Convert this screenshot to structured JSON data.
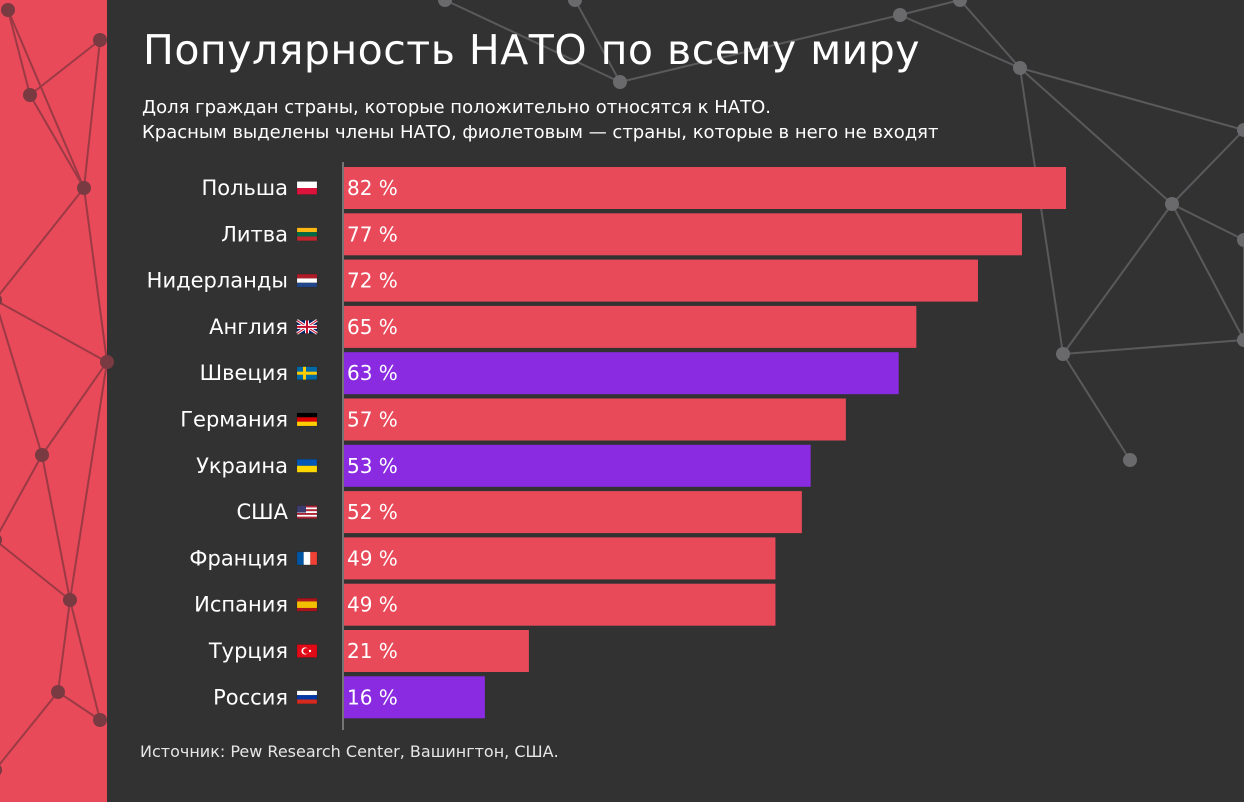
{
  "header": {
    "title": "Популярность НАТО по всему миру",
    "subtitle_line1": "Доля граждан страны, которые положительно относятся к НАТО.",
    "subtitle_line2": "Красным выделены члены НАТО, фиолетовым — страны, которые в него не входят"
  },
  "footer": {
    "source": "Источник: Pew Research Center, Вашингтон, США."
  },
  "colors": {
    "background": "#333233",
    "left_band": "#e84a5a",
    "nato_member": "#e84a5a",
    "non_member": "#8a2be2",
    "network_lines": "#5a595b"
  },
  "chart_data": {
    "type": "bar",
    "orientation": "horizontal",
    "unit": "%",
    "categories": [
      "Польша",
      "Литва",
      "Нидерланды",
      "Англия",
      "Швеция",
      "Германия",
      "Украина",
      "США",
      "Франция",
      "Испания",
      "Турция",
      "Россия"
    ],
    "flags": [
      "flag-poland-icon",
      "flag-lithuania-icon",
      "flag-netherlands-icon",
      "flag-uk-icon",
      "flag-sweden-icon",
      "flag-germany-icon",
      "flag-ukraine-icon",
      "flag-usa-icon",
      "flag-france-icon",
      "flag-spain-icon",
      "flag-turkey-icon",
      "flag-russia-icon"
    ],
    "values": [
      82,
      77,
      72,
      65,
      63,
      57,
      53,
      52,
      49,
      49,
      21,
      16
    ],
    "value_labels": [
      "82 %",
      "77 %",
      "72 %",
      "65 %",
      "63 %",
      "57 %",
      "53 %",
      "52 %",
      "49 %",
      "49 %",
      "21 %",
      "16 %"
    ],
    "nato_member": [
      true,
      true,
      true,
      true,
      false,
      true,
      false,
      true,
      true,
      true,
      true,
      false
    ],
    "xlim": [
      0,
      82
    ],
    "grid": false,
    "legend": "none"
  }
}
